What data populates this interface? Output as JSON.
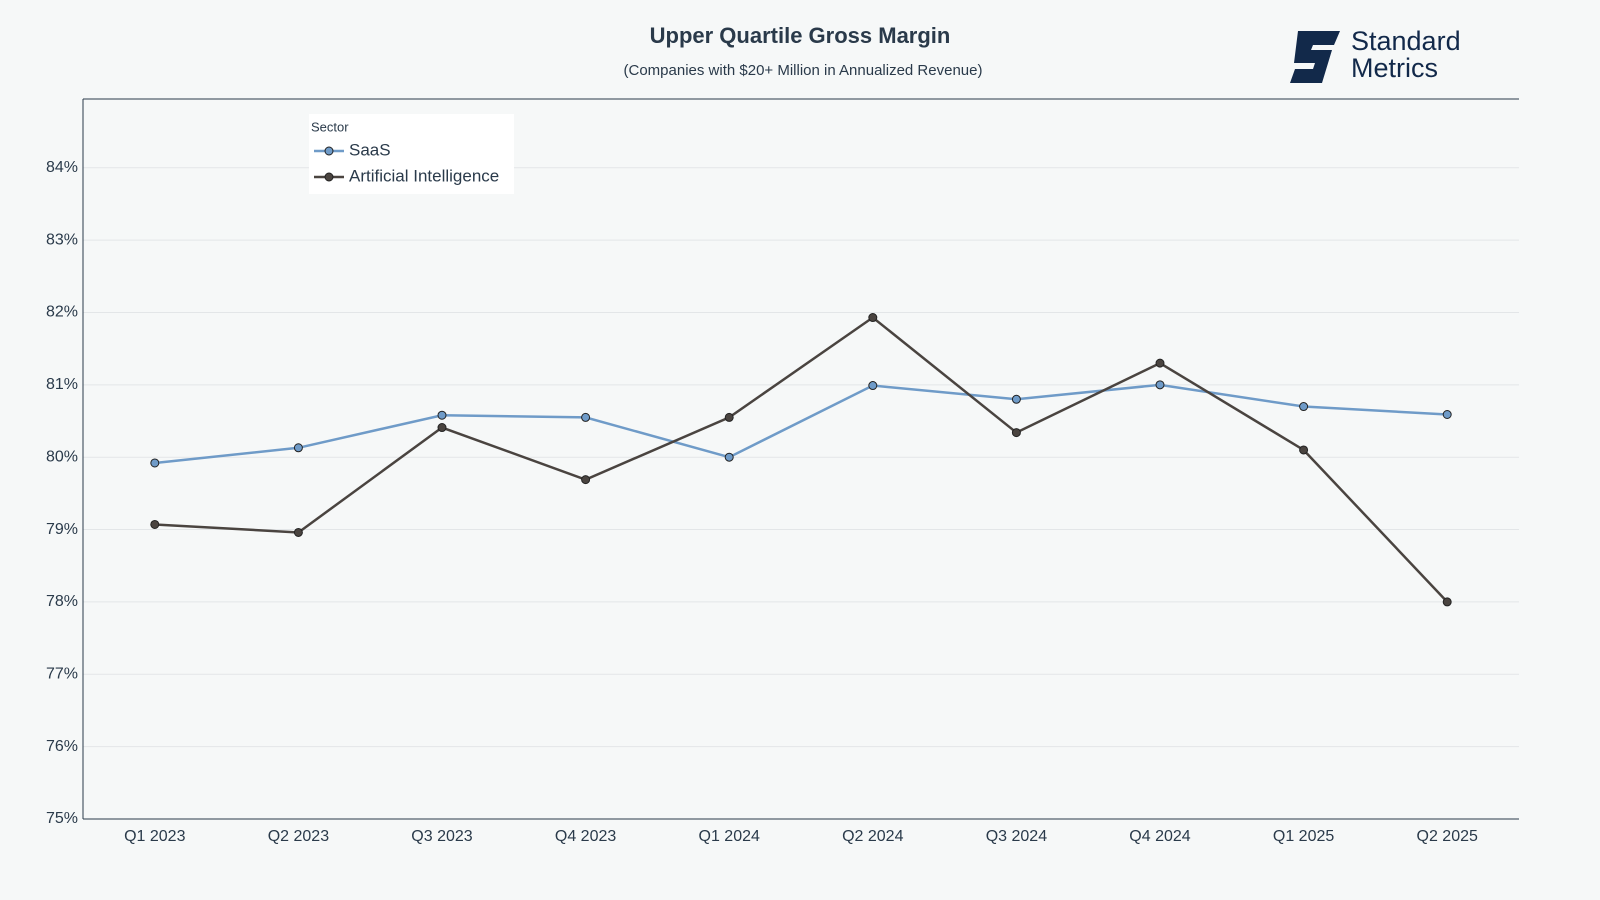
{
  "chart_data": {
    "type": "line",
    "title": "Upper Quartile Gross Margin",
    "subtitle": "(Companies with $20+ Million in Annualized Revenue)",
    "legend_title": "Sector",
    "legend_position": "top-left",
    "grid": true,
    "categories": [
      "Q1 2023",
      "Q2 2023",
      "Q3 2023",
      "Q4 2023",
      "Q1 2024",
      "Q2 2024",
      "Q3 2024",
      "Q4 2024",
      "Q1 2025",
      "Q2 2025"
    ],
    "series": [
      {
        "name": "SaaS",
        "color": "#6f9bc8",
        "values": [
          79.92,
          80.13,
          80.58,
          80.55,
          80.0,
          80.99,
          80.8,
          81.0,
          80.7,
          80.59
        ]
      },
      {
        "name": "Artificial Intelligence",
        "color": "#4a4440",
        "values": [
          79.07,
          78.96,
          80.41,
          79.69,
          80.55,
          81.93,
          80.34,
          81.3,
          80.1,
          78.0
        ]
      }
    ],
    "ylim": [
      75,
      84.95
    ],
    "yticks": [
      {
        "value": 75,
        "label": "75%"
      },
      {
        "value": 76,
        "label": "76%"
      },
      {
        "value": 77,
        "label": "77%"
      },
      {
        "value": 78,
        "label": "78%"
      },
      {
        "value": 79,
        "label": "79%"
      },
      {
        "value": 80,
        "label": "80%"
      },
      {
        "value": 81,
        "label": "81%"
      },
      {
        "value": 82,
        "label": "82%"
      },
      {
        "value": 83,
        "label": "83%"
      },
      {
        "value": 84,
        "label": "84%"
      }
    ]
  },
  "logo": {
    "line1": "Standard",
    "line2": "Metrics"
  }
}
